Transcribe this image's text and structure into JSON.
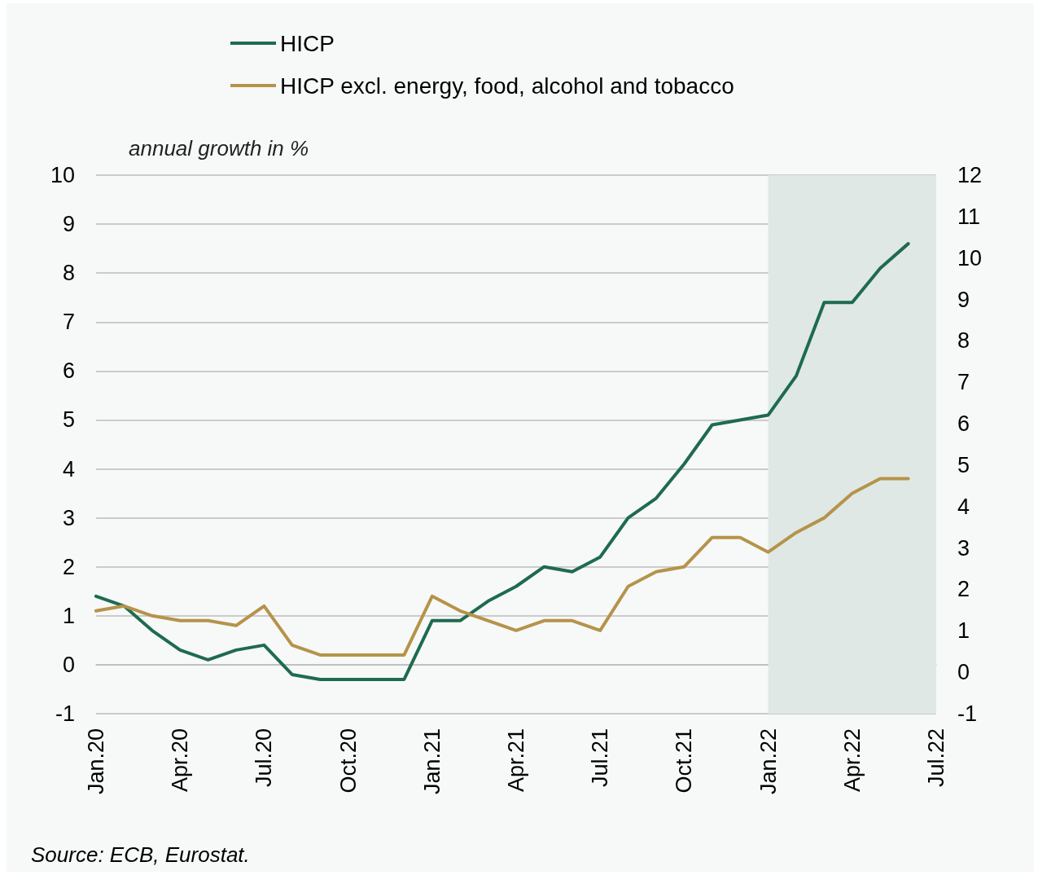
{
  "chart_data": {
    "type": "line",
    "ylabel": "annual growth in %",
    "categories": [
      "Jan.20",
      null,
      null,
      "Apr.20",
      null,
      null,
      "Jul.20",
      null,
      null,
      "Oct.20",
      null,
      null,
      "Jan.21",
      null,
      null,
      "Apr.21",
      null,
      null,
      "Jul.21",
      null,
      null,
      "Oct.21",
      null,
      null,
      "Jan.22",
      null,
      null,
      "Apr.22",
      null,
      null,
      "Jul.22"
    ],
    "series": [
      {
        "name": "HICP",
        "color": "#1e6b4f",
        "values": [
          1.4,
          1.2,
          0.7,
          0.3,
          0.1,
          0.3,
          0.4,
          -0.2,
          -0.3,
          -0.3,
          -0.3,
          -0.3,
          0.9,
          0.9,
          1.3,
          1.6,
          2.0,
          1.9,
          2.2,
          3.0,
          3.4,
          4.1,
          4.9,
          5.0,
          5.1,
          5.9,
          7.4,
          7.4,
          8.1,
          8.6,
          null
        ]
      },
      {
        "name": "HICP excl. energy, food, alcohol and tobacco",
        "color": "#b5934a",
        "values": [
          1.1,
          1.2,
          1.0,
          0.9,
          0.9,
          0.8,
          1.2,
          0.4,
          0.2,
          0.2,
          0.2,
          0.2,
          1.4,
          1.1,
          0.9,
          0.7,
          0.9,
          0.9,
          0.7,
          1.6,
          1.9,
          2.0,
          2.6,
          2.6,
          2.3,
          2.7,
          3.0,
          3.5,
          3.8,
          3.8,
          null
        ]
      }
    ],
    "ylim": [
      -1,
      10
    ],
    "yticks": [
      -1,
      0,
      1,
      2,
      3,
      4,
      5,
      6,
      7,
      8,
      9,
      10
    ],
    "y2lim": [
      -1,
      12
    ],
    "y2ticks": [
      -1,
      0,
      1,
      2,
      3,
      4,
      5,
      6,
      7,
      8,
      9,
      10,
      11,
      12
    ],
    "bands": [
      {
        "axis": "x",
        "from": "Jan.22",
        "to": "Jul.22",
        "color": "#dfe8e4"
      }
    ],
    "grid": "y",
    "legend": "top left",
    "marker": "none",
    "line_style": "solid",
    "annotations": [
      "Source: ECB, Eurostat."
    ]
  }
}
